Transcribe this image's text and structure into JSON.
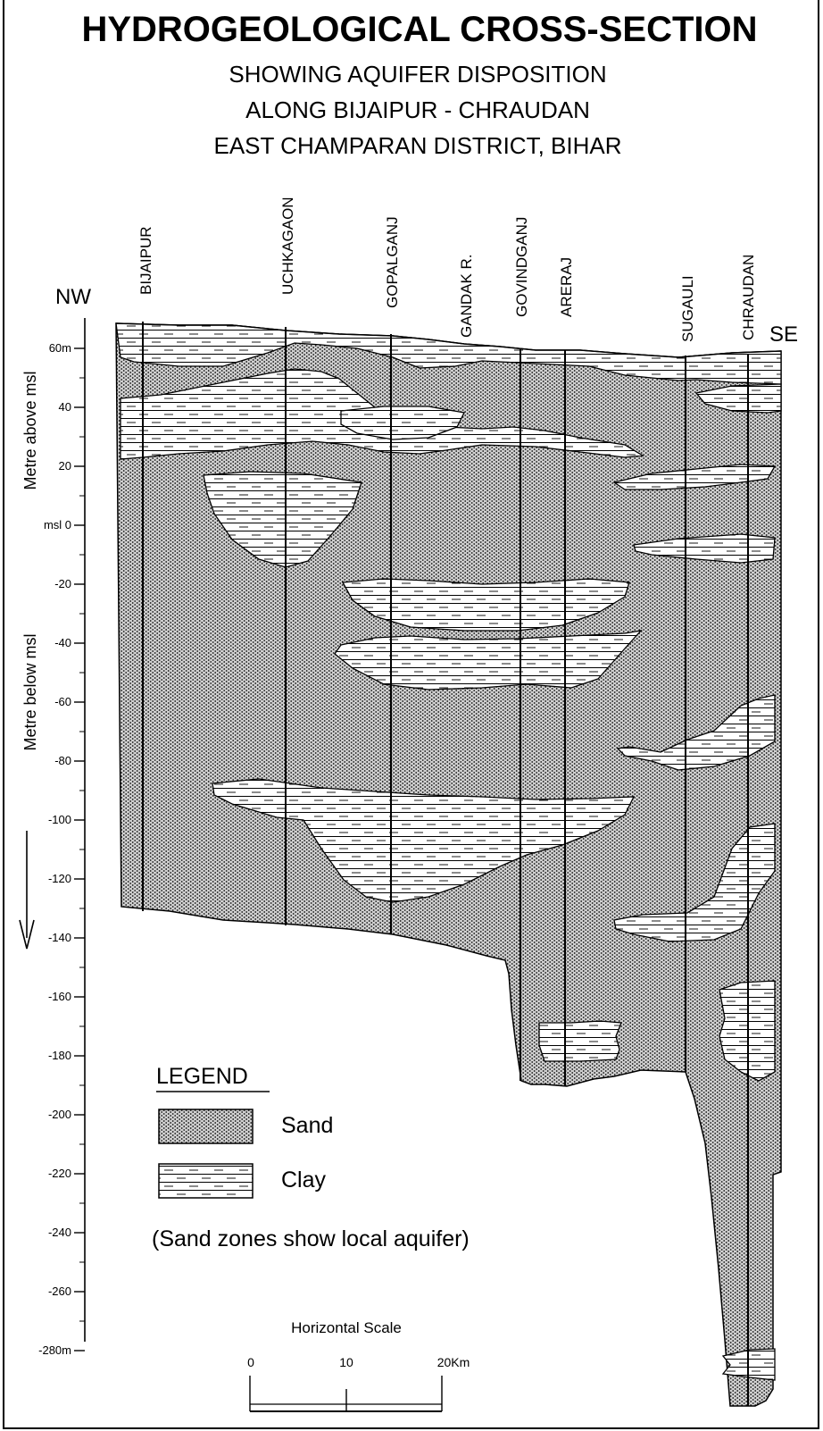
{
  "title": "HYDROGEOLOGICAL CROSS-SECTION",
  "subtitle_lines": [
    "SHOWING AQUIFER DISPOSITION",
    "ALONG BIJAIPUR - CHRAUDAN",
    "EAST CHAMPARAN DISTRICT, BIHAR"
  ],
  "directions": {
    "left": "NW",
    "right": "SE"
  },
  "locations": [
    "BIJAIPUR",
    "UCHKAGAON",
    "GOPALGANJ",
    "GANDAK R.",
    "GOVINDGANJ",
    "ARERAJ",
    "SUGAULI",
    "CHRAUDAN"
  ],
  "axis": {
    "upper_label": "Metre above msl",
    "lower_label": "Metre below msl",
    "ticks": [
      {
        "value": 60,
        "label": "60m"
      },
      {
        "value": 40,
        "label": "40"
      },
      {
        "value": 20,
        "label": "20"
      },
      {
        "value": 0,
        "label": "msl 0"
      },
      {
        "value": -20,
        "label": "-20"
      },
      {
        "value": -40,
        "label": "-40"
      },
      {
        "value": -60,
        "label": "-60"
      },
      {
        "value": -80,
        "label": "-80"
      },
      {
        "value": -100,
        "label": "-100"
      },
      {
        "value": -120,
        "label": "-120"
      },
      {
        "value": -140,
        "label": "-140"
      },
      {
        "value": -160,
        "label": "-160"
      },
      {
        "value": -180,
        "label": "-180"
      },
      {
        "value": -200,
        "label": "-200"
      },
      {
        "value": -220,
        "label": "-220"
      },
      {
        "value": -240,
        "label": "-240"
      },
      {
        "value": -260,
        "label": "-260"
      },
      {
        "value": -280,
        "label": "-280m"
      }
    ]
  },
  "legend": {
    "title": "LEGEND",
    "items": [
      {
        "label": "Sand",
        "pattern": "sand-dots"
      },
      {
        "label": "Clay",
        "pattern": "clay-dashes"
      }
    ],
    "note": "(Sand zones show local aquifer)"
  },
  "scale": {
    "title": "Horizontal Scale",
    "labels": [
      "0",
      "10",
      "20Km"
    ]
  }
}
